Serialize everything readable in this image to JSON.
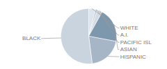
{
  "chart_data": {
    "type": "pie",
    "categories": [
      "WHITE",
      "A.I.",
      "PACIFIC ISL",
      "ASIAN",
      "HISPANIC",
      "BLACK"
    ],
    "values": [
      4,
      1,
      3,
      20,
      20,
      52
    ],
    "colors": [
      "#dde4eb",
      "#b4c2d0",
      "#d3dce5",
      "#7d97ad",
      "#a6b6c6",
      "#c9d4de"
    ]
  }
}
